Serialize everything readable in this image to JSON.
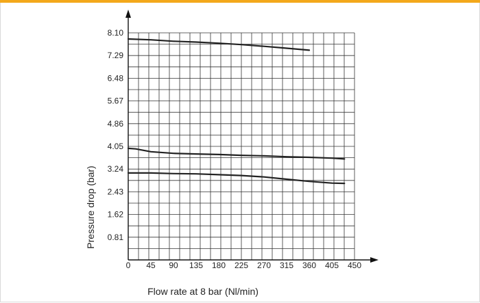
{
  "chart_data": {
    "type": "line",
    "xlabel": "Flow rate at 8 bar (Nl/min)",
    "ylabel": "Pressure drop (bar)",
    "x_ticks": [
      0,
      45,
      90,
      135,
      180,
      225,
      270,
      315,
      360,
      405,
      450
    ],
    "y_ticks": [
      0.81,
      1.62,
      2.43,
      3.24,
      4.05,
      4.86,
      5.67,
      6.48,
      7.29,
      8.1
    ],
    "y_tick_labels": [
      "0.81",
      "1.62",
      "2.43",
      "3.24",
      "4.05",
      "4.86",
      "5.67",
      "6.48",
      "7.29",
      "8.10"
    ],
    "xlim": [
      0,
      450
    ],
    "ylim": [
      0,
      8.1
    ],
    "grid": true,
    "series": [
      {
        "x": [
          0,
          45,
          90,
          135,
          180,
          225,
          270,
          315,
          360
        ],
        "y": [
          7.88,
          7.85,
          7.8,
          7.77,
          7.73,
          7.68,
          7.62,
          7.55,
          7.48
        ]
      },
      {
        "x": [
          0,
          15,
          45,
          90,
          135,
          180,
          225,
          270,
          315,
          360,
          405,
          430
        ],
        "y": [
          3.98,
          3.96,
          3.86,
          3.8,
          3.78,
          3.76,
          3.73,
          3.71,
          3.68,
          3.66,
          3.63,
          3.6
        ]
      },
      {
        "x": [
          0,
          45,
          90,
          135,
          180,
          225,
          270,
          315,
          360,
          405,
          430
        ],
        "y": [
          3.1,
          3.1,
          3.08,
          3.07,
          3.04,
          3.01,
          2.96,
          2.88,
          2.8,
          2.74,
          2.73
        ]
      }
    ],
    "colors": {
      "line": "#222222",
      "grid": "#333333",
      "accent": "#f3a81b"
    }
  }
}
